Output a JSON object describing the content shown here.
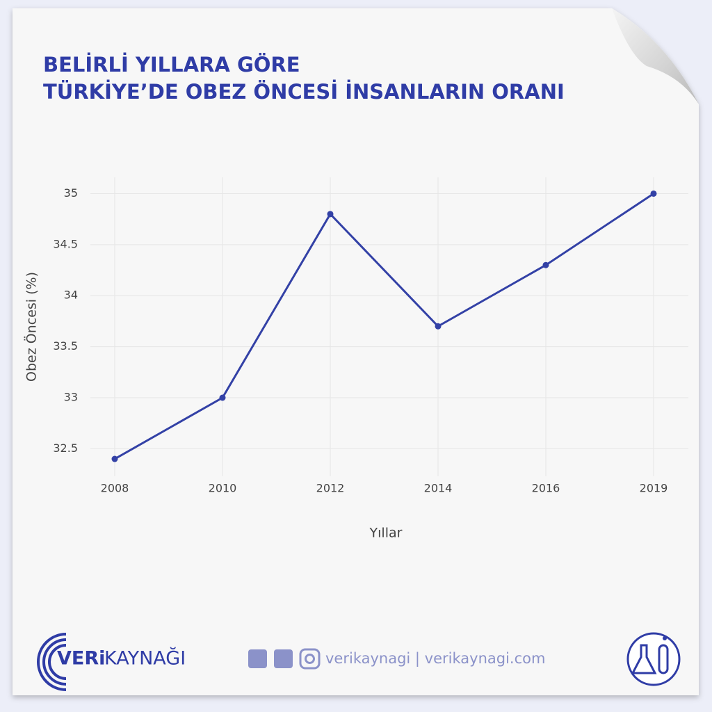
{
  "chart_data": {
    "type": "line",
    "title": [
      "BELİRLİ YILLARA GÖRE",
      "TÜRKİYE’DE OBEZ ÖNCESİ İNSANLARIN ORANI"
    ],
    "x_label": "Yıllar",
    "y_label": "Obez Öncesi (%)",
    "categories": [
      "2008",
      "2010",
      "2012",
      "2014",
      "2016",
      "2019"
    ],
    "values": [
      32.4,
      33,
      34.8,
      33.7,
      34.3,
      35
    ],
    "color": "#3341a6",
    "ylim": [
      32.23,
      35.16
    ],
    "yticks": [
      32.5,
      33,
      33.5,
      34,
      34.5,
      35
    ],
    "grid": true
  },
  "footer": {
    "brand": [
      "VERi",
      "KAYNAĞI"
    ],
    "social": "verikaynagi | verikaynagi.com"
  }
}
